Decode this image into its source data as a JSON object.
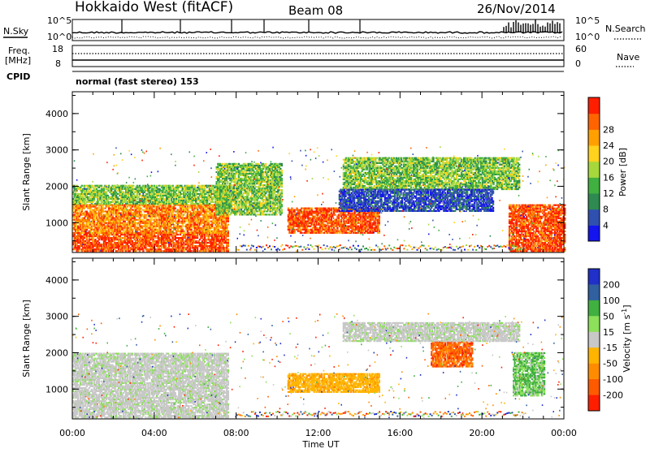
{
  "header": {
    "title": "Hokkaido West (fitACF)",
    "beam": "Beam 08",
    "date": "26/Nov/2014"
  },
  "noise_panel": {
    "left_label": "N.Sky",
    "right_label": "N.Search",
    "left_ticks": [
      "10^5",
      "10^0"
    ],
    "right_ticks": [
      "10^5",
      "10^0"
    ]
  },
  "freq_panel": {
    "label_line1": "Freq.",
    "label_line2": "[MHz]",
    "left_ticks": [
      "18",
      "8"
    ],
    "right_label": "Nave",
    "right_ticks": [
      "60",
      "0"
    ]
  },
  "cpid": {
    "label": "CPID",
    "text": "normal (fast stereo) 153"
  },
  "chart_data": [
    {
      "type": "heatmap",
      "quantity": "Power",
      "xlabel": "Time UT",
      "ylabel": "Slant Range [km]",
      "xlim_hours": [
        0,
        24
      ],
      "ylim_km": [
        180,
        4600
      ],
      "yticks": [
        "1000",
        "2000",
        "3000",
        "4000"
      ],
      "colorbar": {
        "label": "Power [dB]",
        "ticks": [
          "4",
          "8",
          "12",
          "16",
          "20",
          "24",
          "28"
        ],
        "colors": [
          "#1414ee",
          "#3050b0",
          "#2e8a50",
          "#40b040",
          "#a6d83c",
          "#ffd21e",
          "#ffa000",
          "#ff6400",
          "#ff1e00"
        ]
      },
      "regions": [
        {
          "t0": 0.0,
          "t1": 7.6,
          "r0": 200,
          "r1": 700,
          "level": "high"
        },
        {
          "t0": 0.0,
          "t1": 7.6,
          "r0": 700,
          "r1": 1500,
          "level": "mid-high"
        },
        {
          "t0": 0.0,
          "t1": 7.6,
          "r0": 1500,
          "r1": 2000,
          "level": "mid"
        },
        {
          "t0": 7.0,
          "t1": 10.2,
          "r0": 1200,
          "r1": 2600,
          "level": "mid"
        },
        {
          "t0": 10.5,
          "t1": 15.0,
          "r0": 700,
          "r1": 1400,
          "level": "high"
        },
        {
          "t0": 13.2,
          "t1": 21.8,
          "r0": 1900,
          "r1": 2800,
          "level": "mid"
        },
        {
          "t0": 13.0,
          "t1": 20.5,
          "r0": 1300,
          "r1": 1900,
          "level": "low"
        },
        {
          "t0": 21.3,
          "t1": 24.0,
          "r0": 200,
          "r1": 1500,
          "level": "high"
        }
      ]
    },
    {
      "type": "heatmap",
      "quantity": "Velocity",
      "xlabel": "Time UT",
      "ylabel": "Slant Range [km]",
      "xlim_hours": [
        0,
        24
      ],
      "ylim_km": [
        180,
        4600
      ],
      "yticks": [
        "1000",
        "2000",
        "3000",
        "4000"
      ],
      "xticks": [
        "00:00",
        "04:00",
        "08:00",
        "12:00",
        "16:00",
        "20:00",
        "00:00"
      ],
      "colorbar": {
        "label": "Velocity [m s^-1]",
        "ticks": [
          "200",
          "100",
          "50",
          "15",
          "-15",
          "-50",
          "-100",
          "-200"
        ],
        "colors": [
          "#2030c8",
          "#3060a0",
          "#40b040",
          "#8ce05a",
          "#c8c8c8",
          "#ffb400",
          "#ff8c00",
          "#ff5a00",
          "#ff1e00"
        ]
      },
      "regions": [
        {
          "t0": 0.0,
          "t1": 7.6,
          "r0": 200,
          "r1": 2000,
          "level": "ground-scatter"
        },
        {
          "t0": 10.5,
          "t1": 15.0,
          "r0": 900,
          "r1": 1400,
          "level": "-50"
        },
        {
          "t0": 17.5,
          "t1": 19.5,
          "r0": 1600,
          "r1": 2300,
          "level": "-100"
        },
        {
          "t0": 13.2,
          "t1": 21.8,
          "r0": 2300,
          "r1": 2800,
          "level": "ground-scatter"
        },
        {
          "t0": 21.5,
          "t1": 23.0,
          "r0": 800,
          "r1": 2000,
          "level": "50"
        }
      ]
    }
  ]
}
